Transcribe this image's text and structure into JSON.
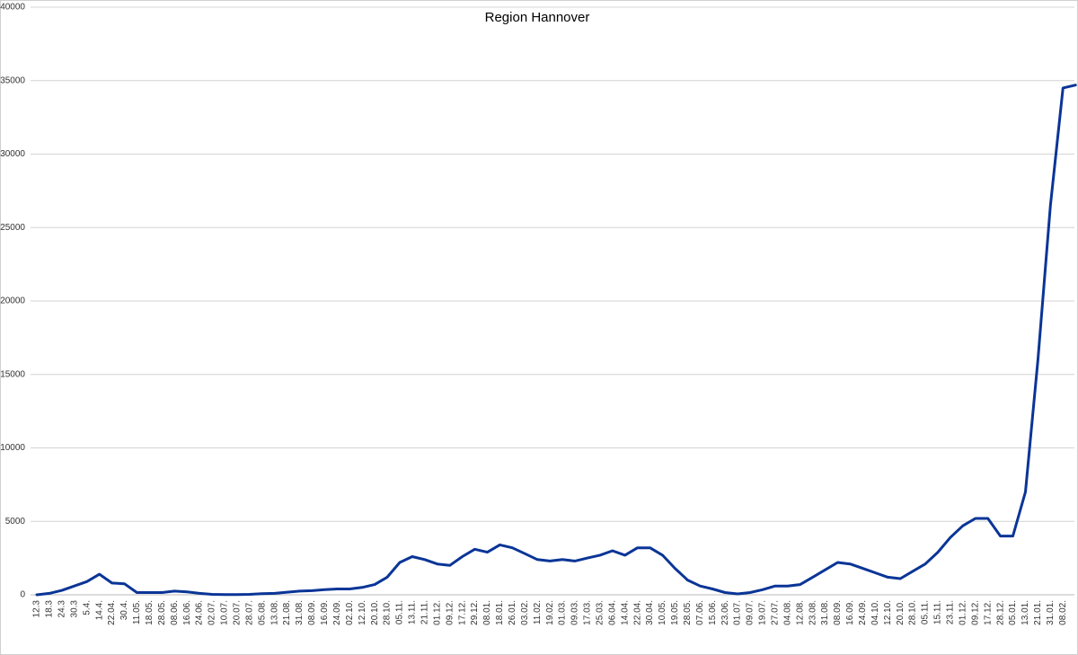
{
  "chart_data": {
    "type": "line",
    "title": "Region Hannover",
    "categories": [
      "12.3",
      "18.3",
      "24.3",
      "30.3",
      "5.4.",
      "14.4.",
      "22.04.",
      "30.4.",
      "11.05.",
      "18.05.",
      "28.05.",
      "08.06.",
      "16.06.",
      "24.06.",
      "02.07.",
      "10.07.",
      "20.07.",
      "28.07.",
      "05.08.",
      "13.08.",
      "21.08.",
      "31.08.",
      "08.09.",
      "16.09.",
      "24.09.",
      "02.10.",
      "12.10.",
      "20.10.",
      "28.10.",
      "05.11.",
      "13.11.",
      "21.11.",
      "01.12.",
      "09.12.",
      "17.12.",
      "29.12.",
      "08.01.",
      "18.01.",
      "26.01.",
      "03.02.",
      "11.02.",
      "19.02.",
      "01.03.",
      "09.03.",
      "17.03.",
      "25.03.",
      "06.04.",
      "14.04.",
      "22.04.",
      "30.04.",
      "10.05.",
      "19.05.",
      "28.05.",
      "07.06.",
      "15.06.",
      "23.06.",
      "01.07.",
      "09.07.",
      "19.07.",
      "27.07.",
      "04.08.",
      "12.08.",
      "23.08.",
      "31.08.",
      "08.09.",
      "16.09.",
      "24.09.",
      "04.10.",
      "12.10.",
      "20.10.",
      "28.10.",
      "05.11.",
      "15.11.",
      "23.11.",
      "01.12.",
      "09.12.",
      "17.12.",
      "28.12.",
      "05.01.",
      "13.01.",
      "21.01.",
      "31.01.",
      "08.02.",
      null
    ],
    "series": [
      {
        "name": "Region Hannover",
        "color": "#0a3597",
        "values": [
          0,
          100,
          300,
          600,
          900,
          1400,
          800,
          750,
          150,
          150,
          150,
          250,
          200,
          100,
          30,
          10,
          10,
          30,
          80,
          100,
          180,
          250,
          280,
          350,
          400,
          400,
          500,
          700,
          1200,
          2200,
          2600,
          2400,
          2100,
          2000,
          2600,
          3100,
          2900,
          3400,
          3200,
          2800,
          2400,
          2300,
          2400,
          2300,
          2500,
          2700,
          3000,
          2700,
          3200,
          3200,
          2700,
          1800,
          1000,
          600,
          400,
          150,
          60,
          150,
          350,
          600,
          600,
          700,
          1200,
          1700,
          2200,
          2100,
          1800,
          1500,
          1200,
          1100,
          1600,
          2100,
          2900,
          3900,
          4700,
          5200,
          5200,
          4000,
          4000,
          7000,
          16000,
          26500,
          34500,
          34700
        ]
      }
    ],
    "ylim": [
      0,
      40000
    ],
    "yticks": [
      0,
      5000,
      10000,
      15000,
      20000,
      25000,
      30000,
      35000,
      40000
    ],
    "grid": true
  }
}
